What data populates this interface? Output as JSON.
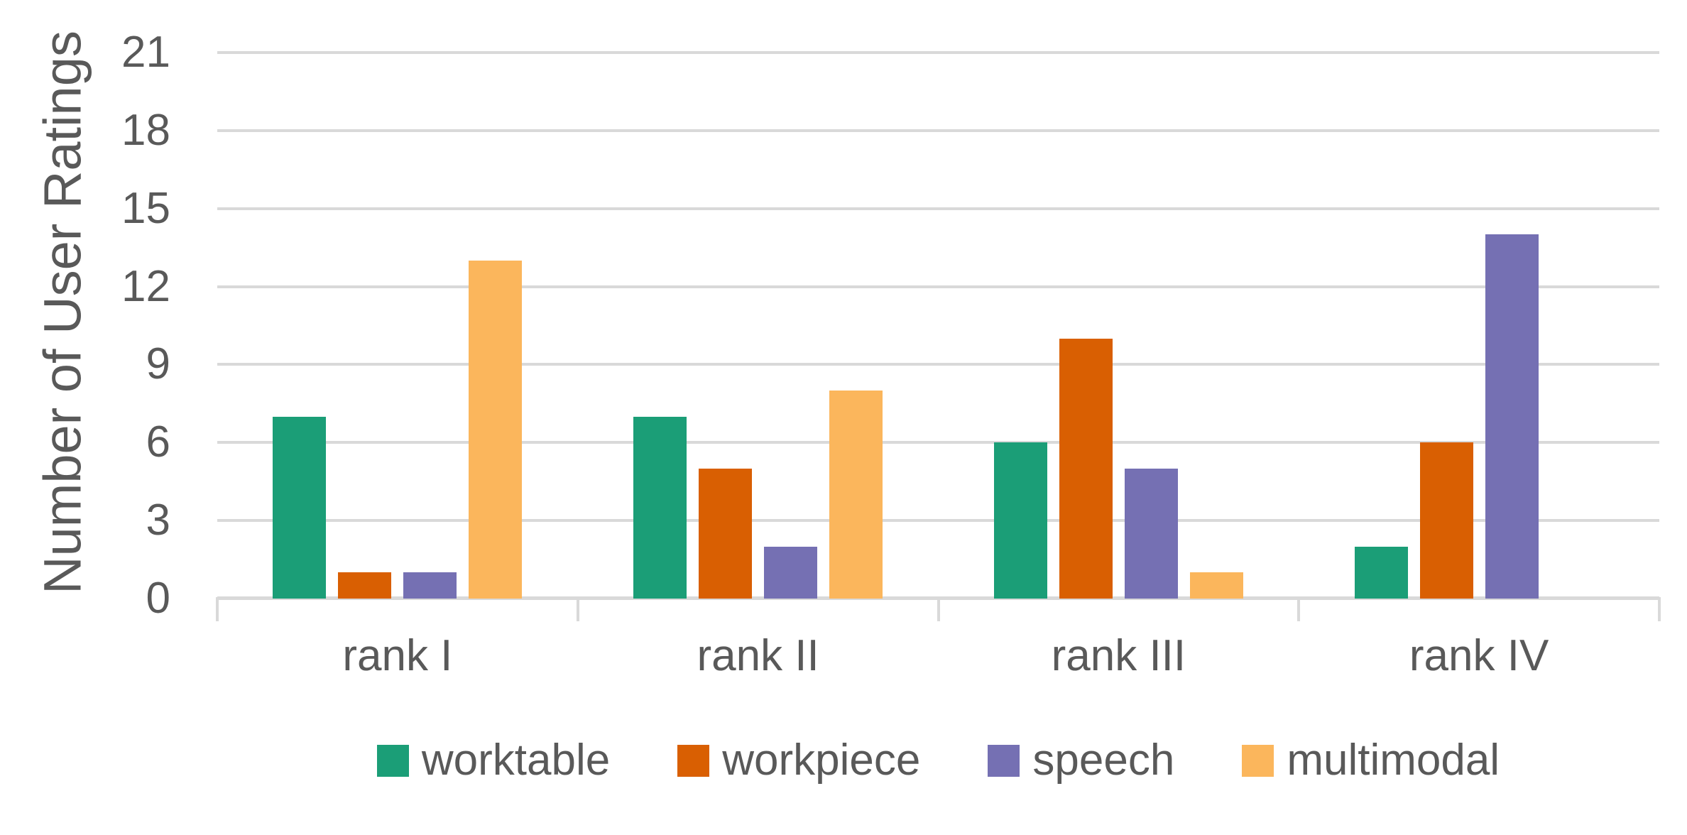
{
  "chart_data": {
    "type": "bar",
    "title": "",
    "categories": [
      "rank I",
      "rank II",
      "rank III",
      "rank IV"
    ],
    "series": [
      {
        "name": "worktable",
        "color": "#1B9E77",
        "values": [
          7,
          7,
          6,
          2
        ]
      },
      {
        "name": "workpiece",
        "color": "#D95F02",
        "values": [
          1,
          5,
          10,
          6
        ]
      },
      {
        "name": "speech",
        "color": "#7570B3",
        "values": [
          1,
          2,
          5,
          14
        ]
      },
      {
        "name": "multimodal",
        "color": "#FBB65C",
        "values": [
          13,
          8,
          1,
          0
        ]
      }
    ],
    "xlabel": "",
    "ylabel": "Number of User Ratings",
    "ylim": [
      0,
      21
    ],
    "yticks": [
      0,
      3,
      6,
      9,
      12,
      15,
      18,
      21
    ],
    "grid": true,
    "legend_position": "bottom",
    "gridline_color": "#D9D9D9",
    "axis_color": "#D9D9D9",
    "text_color": "#595959"
  }
}
